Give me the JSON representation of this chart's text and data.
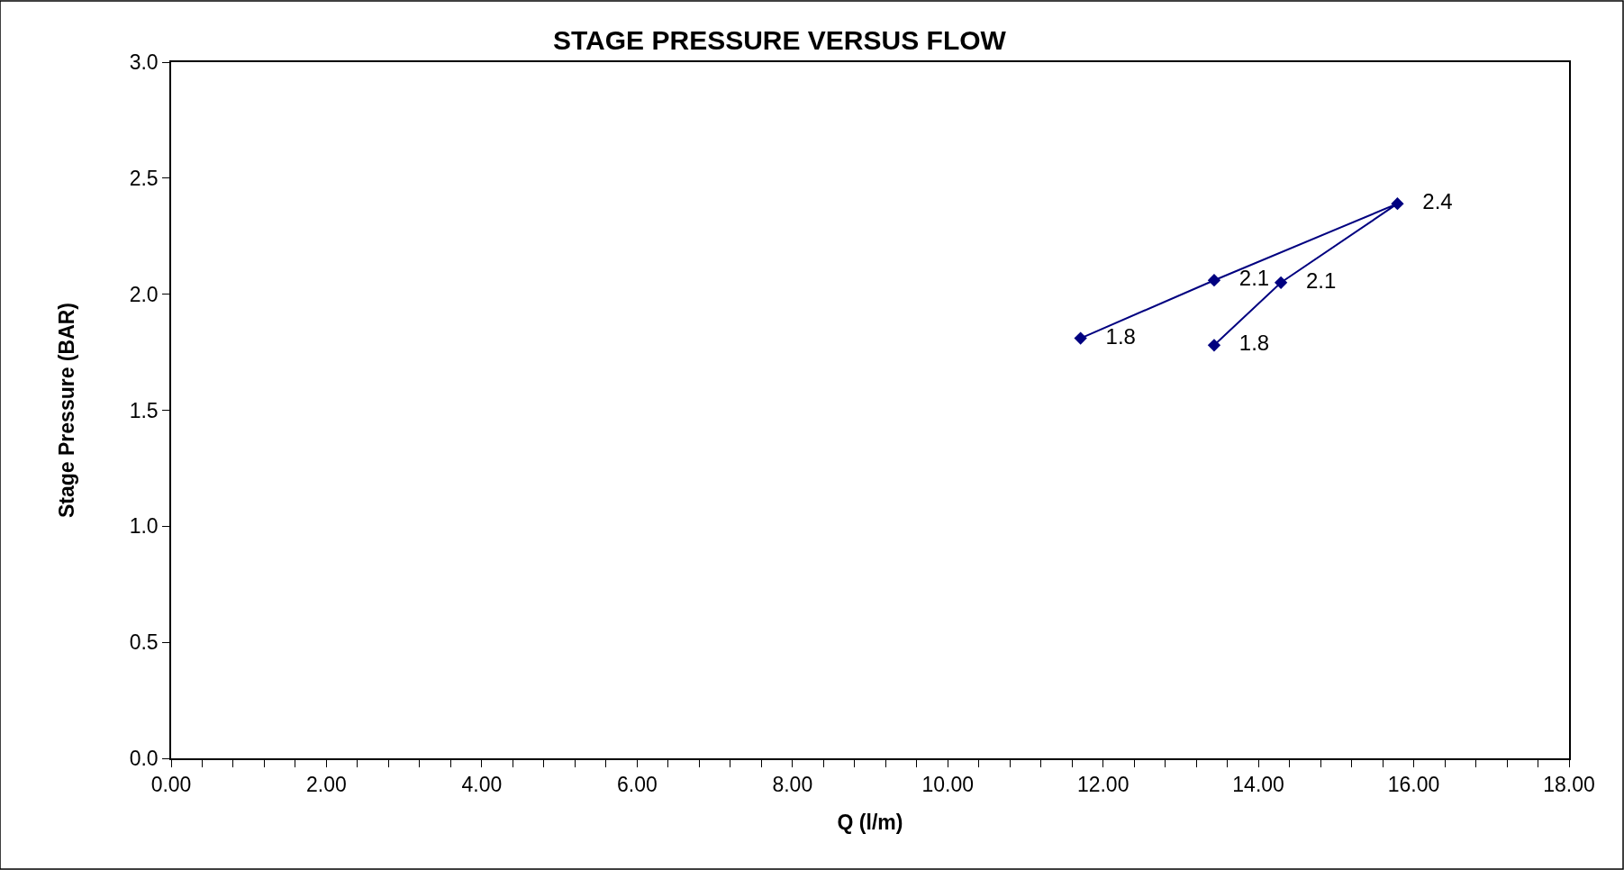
{
  "chart_data": {
    "type": "line",
    "title": "STAGE PRESSURE VERSUS FLOW",
    "xlabel": "Q (l/m)",
    "ylabel": "Stage Pressure (BAR)",
    "x": [
      11.71,
      13.43,
      15.79,
      14.29,
      13.43
    ],
    "series": [
      {
        "color": "#000080",
        "values": [
          1.81,
          2.06,
          2.39,
          2.05,
          1.78
        ],
        "value_labels": [
          "1.8",
          "2.1",
          "2.4",
          "2.1",
          "1.8"
        ]
      }
    ],
    "xlim": [
      0,
      18
    ],
    "ylim": [
      0,
      3.0
    ],
    "xticks": [
      {
        "value": 0,
        "label": "0.00"
      },
      {
        "value": 0.4,
        "label": null
      },
      {
        "value": 0.8,
        "label": null
      },
      {
        "value": 1.2,
        "label": null
      },
      {
        "value": 1.6,
        "label": null
      },
      {
        "value": 2,
        "label": "2.00"
      },
      {
        "value": 2.4,
        "label": null
      },
      {
        "value": 2.8,
        "label": null
      },
      {
        "value": 3.2,
        "label": null
      },
      {
        "value": 3.6,
        "label": null
      },
      {
        "value": 4,
        "label": "4.00"
      },
      {
        "value": 4.4,
        "label": null
      },
      {
        "value": 4.8,
        "label": null
      },
      {
        "value": 5.2,
        "label": null
      },
      {
        "value": 5.6,
        "label": null
      },
      {
        "value": 6,
        "label": "6.00"
      },
      {
        "value": 6.4,
        "label": null
      },
      {
        "value": 6.8,
        "label": null
      },
      {
        "value": 7.2,
        "label": null
      },
      {
        "value": 7.6,
        "label": null
      },
      {
        "value": 8,
        "label": "8.00"
      },
      {
        "value": 8.4,
        "label": null
      },
      {
        "value": 8.8,
        "label": null
      },
      {
        "value": 9.2,
        "label": null
      },
      {
        "value": 9.6,
        "label": null
      },
      {
        "value": 10,
        "label": "10.00"
      },
      {
        "value": 10.4,
        "label": null
      },
      {
        "value": 10.8,
        "label": null
      },
      {
        "value": 11.2,
        "label": null
      },
      {
        "value": 11.6,
        "label": null
      },
      {
        "value": 12,
        "label": "12.00"
      },
      {
        "value": 12.4,
        "label": null
      },
      {
        "value": 12.8,
        "label": null
      },
      {
        "value": 13.2,
        "label": null
      },
      {
        "value": 13.6,
        "label": null
      },
      {
        "value": 14,
        "label": "14.00"
      },
      {
        "value": 14.4,
        "label": null
      },
      {
        "value": 14.8,
        "label": null
      },
      {
        "value": 15.2,
        "label": null
      },
      {
        "value": 15.6,
        "label": null
      },
      {
        "value": 16,
        "label": "16.00"
      },
      {
        "value": 16.4,
        "label": null
      },
      {
        "value": 16.8,
        "label": null
      },
      {
        "value": 17.2,
        "label": null
      },
      {
        "value": 17.6,
        "label": null
      },
      {
        "value": 18,
        "label": "18.00"
      }
    ],
    "yticks": [
      {
        "value": 0,
        "label": "0.0"
      },
      {
        "value": 0.5,
        "label": "0.5"
      },
      {
        "value": 1,
        "label": "1.0"
      },
      {
        "value": 1.5,
        "label": "1.5"
      },
      {
        "value": 2,
        "label": "2.0"
      },
      {
        "value": 2.5,
        "label": "2.5"
      },
      {
        "value": 3,
        "label": "3.0"
      }
    ],
    "marker": "diamond",
    "line_style": "solid"
  }
}
